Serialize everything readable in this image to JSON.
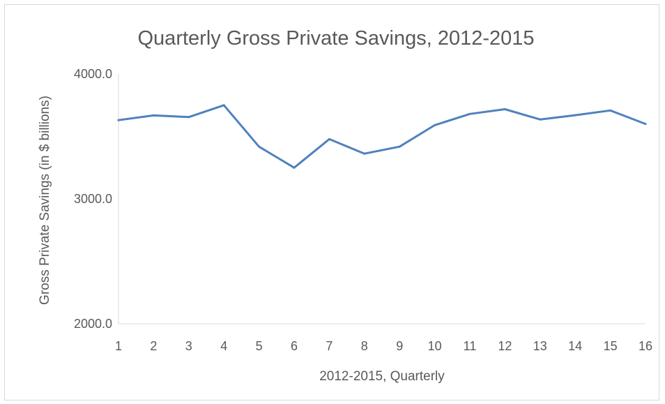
{
  "chart_data": {
    "type": "line",
    "title": "Quarterly Gross Private Savings, 2012-2015",
    "xlabel": "2012-2015, Quarterly",
    "ylabel": "Gross Private Savings (in $ billions)",
    "ylim": [
      2000,
      4000
    ],
    "yticks": [
      "2000.0",
      "3000.0",
      "4000.0"
    ],
    "categories": [
      "1",
      "2",
      "3",
      "4",
      "5",
      "6",
      "7",
      "8",
      "9",
      "10",
      "11",
      "12",
      "13",
      "14",
      "15",
      "16"
    ],
    "series": [
      {
        "values": [
          3630,
          3668,
          3655,
          3750,
          3418,
          3250,
          3478,
          3362,
          3418,
          3590,
          3680,
          3718,
          3636,
          3670,
          3708,
          3600
        ],
        "color": "#4f81bd"
      }
    ],
    "grid": false,
    "legend": "none"
  }
}
